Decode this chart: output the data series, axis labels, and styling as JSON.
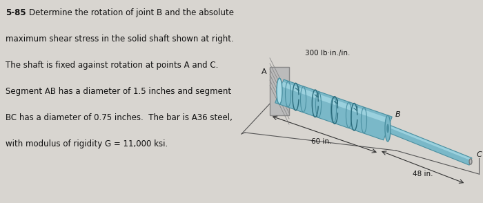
{
  "bg_color": "#d8d5d0",
  "text_block": {
    "problem_num": "5-85",
    "lines": [
      "Determine the rotation of joint B and the absolute",
      "maximum shear stress in the solid shaft shown at right.",
      "The shaft is fixed against rotation at points A and C.",
      "Segment AB has a diameter of 1.5 inches and segment",
      "BC has a diameter of 0.75 inches.  The bar is A36 steel,",
      "with modulus of rigidity G = 11,000 ksi."
    ]
  },
  "diagram": {
    "load_label": "300 lb·in./in.",
    "label_A": "A",
    "label_B": "B",
    "label_C": "C",
    "dim_AB": "60 in.",
    "dim_BC": "48 in.",
    "shaft_color_main": "#7ab8c8",
    "shaft_color_dark": "#4a8fa0",
    "shaft_color_light": "#aadce8",
    "wall_color": "#c8c8c8",
    "line_color": "#444444",
    "dim_line_color": "#333333"
  }
}
